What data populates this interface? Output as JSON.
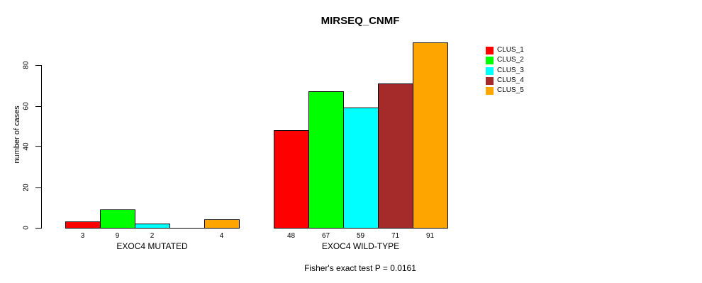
{
  "chart_data": {
    "type": "bar",
    "title": "MIRSEQ_CNMF",
    "ylabel": "number of cases",
    "xlabel": "",
    "annotation": "Fisher's exact test P = 0.0161",
    "categories": [
      "EXOC4 MUTATED",
      "EXOC4 WILD-TYPE"
    ],
    "series": [
      {
        "name": "CLUS_1",
        "color": "#FF0000",
        "values": [
          3,
          48
        ]
      },
      {
        "name": "CLUS_2",
        "color": "#00FF00",
        "values": [
          9,
          67
        ]
      },
      {
        "name": "CLUS_3",
        "color": "#00FFFF",
        "values": [
          2,
          59
        ]
      },
      {
        "name": "CLUS_4",
        "color": "#A52A2A",
        "values": [
          0,
          71
        ]
      },
      {
        "name": "CLUS_5",
        "color": "#FFA500",
        "values": [
          4,
          91
        ]
      }
    ],
    "bar_value_labels": [
      [
        "3",
        "9",
        "2",
        "",
        "4"
      ],
      [
        "48",
        "67",
        "59",
        "71",
        "91"
      ]
    ],
    "yticks": [
      0,
      20,
      40,
      60,
      80
    ],
    "ylim": [
      0,
      93
    ],
    "grid": false,
    "legend_position": "topright",
    "legend_entries": [
      "CLUS_1",
      "CLUS_2",
      "CLUS_3",
      "CLUS_4",
      "CLUS_5"
    ],
    "background_color": "#FFFFFF",
    "text_color": "#000000"
  }
}
